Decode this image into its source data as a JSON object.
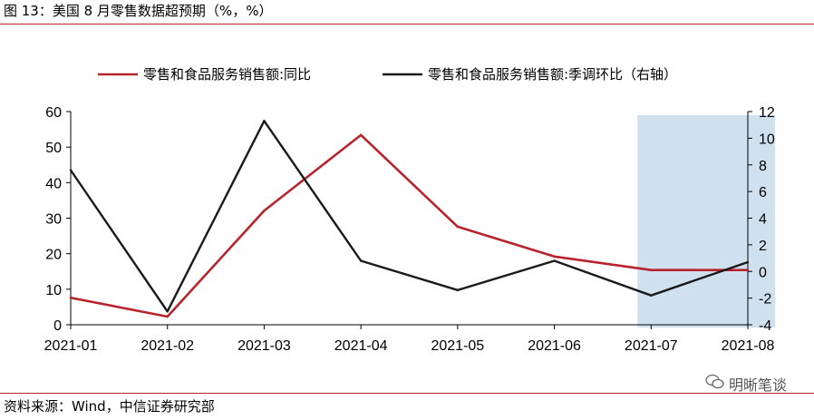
{
  "figure_title": "图 13：美国 8 月零售数据超预期（%，%）",
  "source_note": "资料来源：Wind，中信证券研究部",
  "watermark": "明晰笔谈",
  "colors": {
    "series_red": "#b8232b",
    "series_black": "#1a1a1a",
    "highlight": "#cfe0ef",
    "rule": "#b8232b"
  },
  "chart_data": {
    "type": "line",
    "categories": [
      "2021-01",
      "2021-02",
      "2021-03",
      "2021-04",
      "2021-05",
      "2021-06",
      "2021-07",
      "2021-08"
    ],
    "series": [
      {
        "name": "零售和食品服务销售额:同比",
        "axis": "left",
        "values": [
          7.6,
          2.3,
          32.1,
          53.4,
          27.6,
          19.2,
          15.4,
          15.4
        ]
      },
      {
        "name": "零售和食品服务销售额:季调环比（右轴）",
        "axis": "right",
        "values": [
          7.6,
          -3.0,
          11.3,
          0.8,
          -1.4,
          0.8,
          -1.8,
          0.7
        ]
      }
    ],
    "left_axis": {
      "min": 0,
      "max": 60,
      "ticks": [
        0,
        10,
        20,
        30,
        40,
        50,
        60
      ]
    },
    "right_axis": {
      "min": -4,
      "max": 12,
      "ticks": [
        -4,
        -2,
        0,
        2,
        4,
        6,
        8,
        10,
        12
      ]
    },
    "highlight_categories": [
      "2021-07",
      "2021-08"
    ],
    "legend_position": "top"
  }
}
